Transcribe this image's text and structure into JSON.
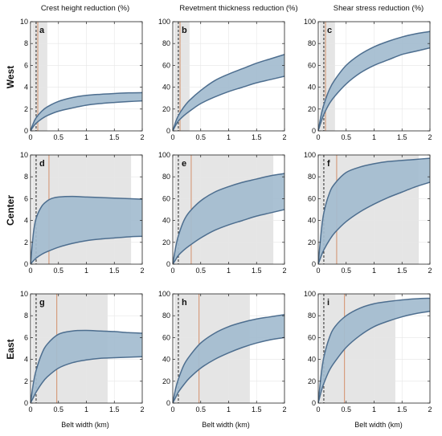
{
  "figure": {
    "column_titles": [
      "Crest height reduction (%)",
      "Revetment thickness reduction (%)",
      "Shear stress reduction (%)"
    ],
    "row_labels": [
      "West",
      "Center",
      "East"
    ],
    "xlabel": "Belt width (km)",
    "colors": {
      "band_fill": "#a3bccf",
      "band_line": "#4d6e8f",
      "shade": "#e5e5e5",
      "marker_line": "#d2906b",
      "dashed_line": "#111111",
      "grid": "#e6e6e6"
    }
  },
  "chart_data": [
    {
      "type": "area",
      "panel": "a",
      "row": "West",
      "column": "Crest height reduction (%)",
      "xlim": [
        0,
        2
      ],
      "ylim": [
        0,
        10
      ],
      "xticks": [
        "0",
        "0.5",
        "1",
        "1.5",
        "2"
      ],
      "yticks": [
        "0",
        "2",
        "4",
        "6",
        "8",
        "10"
      ],
      "shaded_range": [
        0.03,
        0.3
      ],
      "marker_x": 0.13,
      "dashed_x": 0.1,
      "upper": {
        "x": [
          0,
          0.05,
          0.1,
          0.2,
          0.3,
          0.5,
          0.75,
          1,
          1.25,
          1.5,
          1.75,
          2
        ],
        "y": [
          0,
          0.7,
          1.2,
          1.8,
          2.2,
          2.7,
          3.05,
          3.25,
          3.35,
          3.42,
          3.48,
          3.5
        ]
      },
      "lower": {
        "x": [
          0,
          0.05,
          0.1,
          0.2,
          0.3,
          0.5,
          0.75,
          1,
          1.25,
          1.5,
          1.75,
          2
        ],
        "y": [
          0,
          0.4,
          0.7,
          1.1,
          1.4,
          1.8,
          2.1,
          2.35,
          2.5,
          2.6,
          2.68,
          2.75
        ]
      }
    },
    {
      "type": "area",
      "panel": "b",
      "row": "West",
      "column": "Revetment thickness reduction (%)",
      "xlim": [
        0,
        2
      ],
      "ylim": [
        0,
        100
      ],
      "xticks": [
        "0",
        "0.5",
        "1",
        "1.5",
        "2"
      ],
      "yticks": [
        "0",
        "20",
        "40",
        "60",
        "80",
        "100"
      ],
      "shaded_range": [
        0.03,
        0.3
      ],
      "marker_x": 0.13,
      "dashed_x": 0.1,
      "upper": {
        "x": [
          0,
          0.05,
          0.1,
          0.2,
          0.3,
          0.5,
          0.75,
          1,
          1.25,
          1.5,
          1.75,
          2
        ],
        "y": [
          0,
          8,
          14,
          22,
          28,
          37,
          46,
          52,
          57,
          62,
          66,
          70
        ]
      },
      "lower": {
        "x": [
          0,
          0.05,
          0.1,
          0.2,
          0.3,
          0.5,
          0.75,
          1,
          1.25,
          1.5,
          1.75,
          2
        ],
        "y": [
          0,
          5,
          9,
          14,
          18,
          25,
          31,
          36,
          40,
          44,
          47,
          50
        ]
      }
    },
    {
      "type": "area",
      "panel": "c",
      "row": "West",
      "column": "Shear stress reduction (%)",
      "xlim": [
        0,
        2
      ],
      "ylim": [
        0,
        100
      ],
      "xticks": [
        "0",
        "0.5",
        "1",
        "1.5",
        "2"
      ],
      "yticks": [
        "0",
        "20",
        "40",
        "60",
        "80",
        "100"
      ],
      "shaded_range": [
        0.03,
        0.3
      ],
      "marker_x": 0.13,
      "dashed_x": 0.1,
      "upper": {
        "x": [
          0,
          0.05,
          0.1,
          0.2,
          0.3,
          0.5,
          0.75,
          1,
          1.25,
          1.5,
          1.75,
          2
        ],
        "y": [
          0,
          14,
          24,
          38,
          47,
          60,
          70,
          77,
          82,
          86,
          89,
          91
        ]
      },
      "lower": {
        "x": [
          0,
          0.05,
          0.1,
          0.2,
          0.3,
          0.5,
          0.75,
          1,
          1.25,
          1.5,
          1.75,
          2
        ],
        "y": [
          0,
          8,
          15,
          25,
          32,
          43,
          53,
          60,
          65,
          70,
          73,
          76
        ]
      }
    },
    {
      "type": "area",
      "panel": "d",
      "row": "Center",
      "column": "Crest height reduction (%)",
      "xlim": [
        0,
        2
      ],
      "ylim": [
        0,
        10
      ],
      "xticks": [
        "0",
        "0.5",
        "1",
        "1.5",
        "2"
      ],
      "yticks": [
        "0",
        "2",
        "4",
        "6",
        "8",
        "10"
      ],
      "shaded_range": [
        0.03,
        1.8
      ],
      "marker_x": 0.33,
      "dashed_x": 0.1,
      "upper": {
        "x": [
          0,
          0.05,
          0.1,
          0.2,
          0.3,
          0.4,
          0.5,
          0.75,
          1,
          1.25,
          1.5,
          1.75,
          2
        ],
        "y": [
          0,
          2.8,
          4.2,
          5.3,
          5.8,
          6.05,
          6.15,
          6.2,
          6.15,
          6.1,
          6.05,
          6.0,
          5.95
        ]
      },
      "lower": {
        "x": [
          0,
          0.05,
          0.1,
          0.2,
          0.3,
          0.5,
          0.75,
          1,
          1.25,
          1.5,
          1.75,
          2
        ],
        "y": [
          0,
          0.3,
          0.55,
          0.9,
          1.15,
          1.55,
          1.9,
          2.15,
          2.3,
          2.4,
          2.5,
          2.55
        ]
      }
    },
    {
      "type": "area",
      "panel": "e",
      "row": "Center",
      "column": "Revetment thickness reduction (%)",
      "xlim": [
        0,
        2
      ],
      "ylim": [
        0,
        100
      ],
      "xticks": [
        "0",
        "0.5",
        "1",
        "1.5",
        "2"
      ],
      "yticks": [
        "0",
        "20",
        "40",
        "60",
        "80",
        "100"
      ],
      "shaded_range": [
        0.03,
        1.8
      ],
      "marker_x": 0.33,
      "dashed_x": 0.1,
      "upper": {
        "x": [
          0,
          0.05,
          0.1,
          0.2,
          0.3,
          0.5,
          0.75,
          1,
          1.25,
          1.5,
          1.75,
          2
        ],
        "y": [
          0,
          15,
          26,
          40,
          48,
          58,
          66,
          71,
          75,
          78,
          81,
          83
        ]
      },
      "lower": {
        "x": [
          0,
          0.05,
          0.1,
          0.2,
          0.3,
          0.5,
          0.75,
          1,
          1.25,
          1.5,
          1.75,
          2
        ],
        "y": [
          0,
          4,
          8,
          13,
          17,
          24,
          31,
          36,
          40,
          44,
          47,
          50
        ]
      }
    },
    {
      "type": "area",
      "panel": "f",
      "row": "Center",
      "column": "Shear stress reduction (%)",
      "xlim": [
        0,
        2
      ],
      "ylim": [
        0,
        100
      ],
      "xticks": [
        "0",
        "0.5",
        "1",
        "1.5",
        "2"
      ],
      "yticks": [
        "0",
        "20",
        "40",
        "60",
        "80",
        "100"
      ],
      "shaded_range": [
        0.03,
        1.8
      ],
      "marker_x": 0.33,
      "dashed_x": 0.1,
      "upper": {
        "x": [
          0,
          0.05,
          0.1,
          0.2,
          0.3,
          0.5,
          0.75,
          1,
          1.25,
          1.5,
          1.75,
          2
        ],
        "y": [
          0,
          28,
          47,
          65,
          74,
          84,
          89,
          92,
          94,
          95,
          96,
          97
        ]
      },
      "lower": {
        "x": [
          0,
          0.05,
          0.1,
          0.2,
          0.3,
          0.5,
          0.75,
          1,
          1.25,
          1.5,
          1.75,
          2
        ],
        "y": [
          0,
          7,
          13,
          22,
          29,
          39,
          48,
          55,
          61,
          66,
          71,
          75
        ]
      }
    },
    {
      "type": "area",
      "panel": "g",
      "row": "East",
      "column": "Crest height reduction (%)",
      "xlim": [
        0,
        2
      ],
      "ylim": [
        0,
        10
      ],
      "xticks": [
        "0",
        "0.5",
        "1",
        "1.5",
        "2"
      ],
      "yticks": [
        "0",
        "2",
        "4",
        "6",
        "8",
        "10"
      ],
      "shaded_range": [
        0.03,
        1.38
      ],
      "marker_x": 0.47,
      "dashed_x": 0.1,
      "upper": {
        "x": [
          0,
          0.05,
          0.1,
          0.2,
          0.3,
          0.5,
          0.75,
          1,
          1.25,
          1.5,
          1.75,
          2
        ],
        "y": [
          0,
          1.8,
          3.0,
          4.5,
          5.4,
          6.3,
          6.6,
          6.65,
          6.6,
          6.55,
          6.45,
          6.4
        ]
      },
      "lower": {
        "x": [
          0,
          0.05,
          0.1,
          0.2,
          0.3,
          0.5,
          0.75,
          1,
          1.25,
          1.5,
          1.75,
          2
        ],
        "y": [
          0,
          0.5,
          1.0,
          1.8,
          2.4,
          3.2,
          3.7,
          3.95,
          4.1,
          4.15,
          4.2,
          4.25
        ]
      }
    },
    {
      "type": "area",
      "panel": "h",
      "row": "East",
      "column": "Revetment thickness reduction (%)",
      "xlim": [
        0,
        2
      ],
      "ylim": [
        0,
        100
      ],
      "xticks": [
        "0",
        "0.5",
        "1",
        "1.5",
        "2"
      ],
      "yticks": [
        "0",
        "20",
        "40",
        "60",
        "80",
        "100"
      ],
      "shaded_range": [
        0.03,
        1.38
      ],
      "marker_x": 0.47,
      "dashed_x": 0.1,
      "upper": {
        "x": [
          0,
          0.05,
          0.1,
          0.2,
          0.3,
          0.5,
          0.75,
          1,
          1.25,
          1.5,
          1.75,
          2
        ],
        "y": [
          0,
          13,
          22,
          35,
          43,
          55,
          64,
          70,
          74,
          77,
          79,
          81
        ]
      },
      "lower": {
        "x": [
          0,
          0.05,
          0.1,
          0.2,
          0.3,
          0.5,
          0.75,
          1,
          1.25,
          1.5,
          1.75,
          2
        ],
        "y": [
          0,
          5,
          10,
          17,
          23,
          32,
          40,
          46,
          51,
          55,
          58,
          60
        ]
      }
    },
    {
      "type": "area",
      "panel": "i",
      "row": "East",
      "column": "Shear stress reduction (%)",
      "xlim": [
        0,
        2
      ],
      "ylim": [
        0,
        100
      ],
      "xticks": [
        "0",
        "0.5",
        "1",
        "1.5",
        "2"
      ],
      "yticks": [
        "0",
        "20",
        "40",
        "60",
        "80",
        "100"
      ],
      "shaded_range": [
        0.03,
        1.38
      ],
      "marker_x": 0.47,
      "dashed_x": 0.1,
      "upper": {
        "x": [
          0,
          0.05,
          0.1,
          0.2,
          0.3,
          0.5,
          0.75,
          1,
          1.25,
          1.5,
          1.75,
          2
        ],
        "y": [
          0,
          25,
          42,
          60,
          70,
          80,
          87,
          91,
          93,
          94.5,
          95.5,
          96
        ]
      },
      "lower": {
        "x": [
          0,
          0.05,
          0.1,
          0.2,
          0.3,
          0.5,
          0.75,
          1,
          1.25,
          1.5,
          1.75,
          2
        ],
        "y": [
          0,
          10,
          18,
          30,
          38,
          51,
          62,
          70,
          75,
          79,
          82,
          84
        ]
      }
    }
  ]
}
